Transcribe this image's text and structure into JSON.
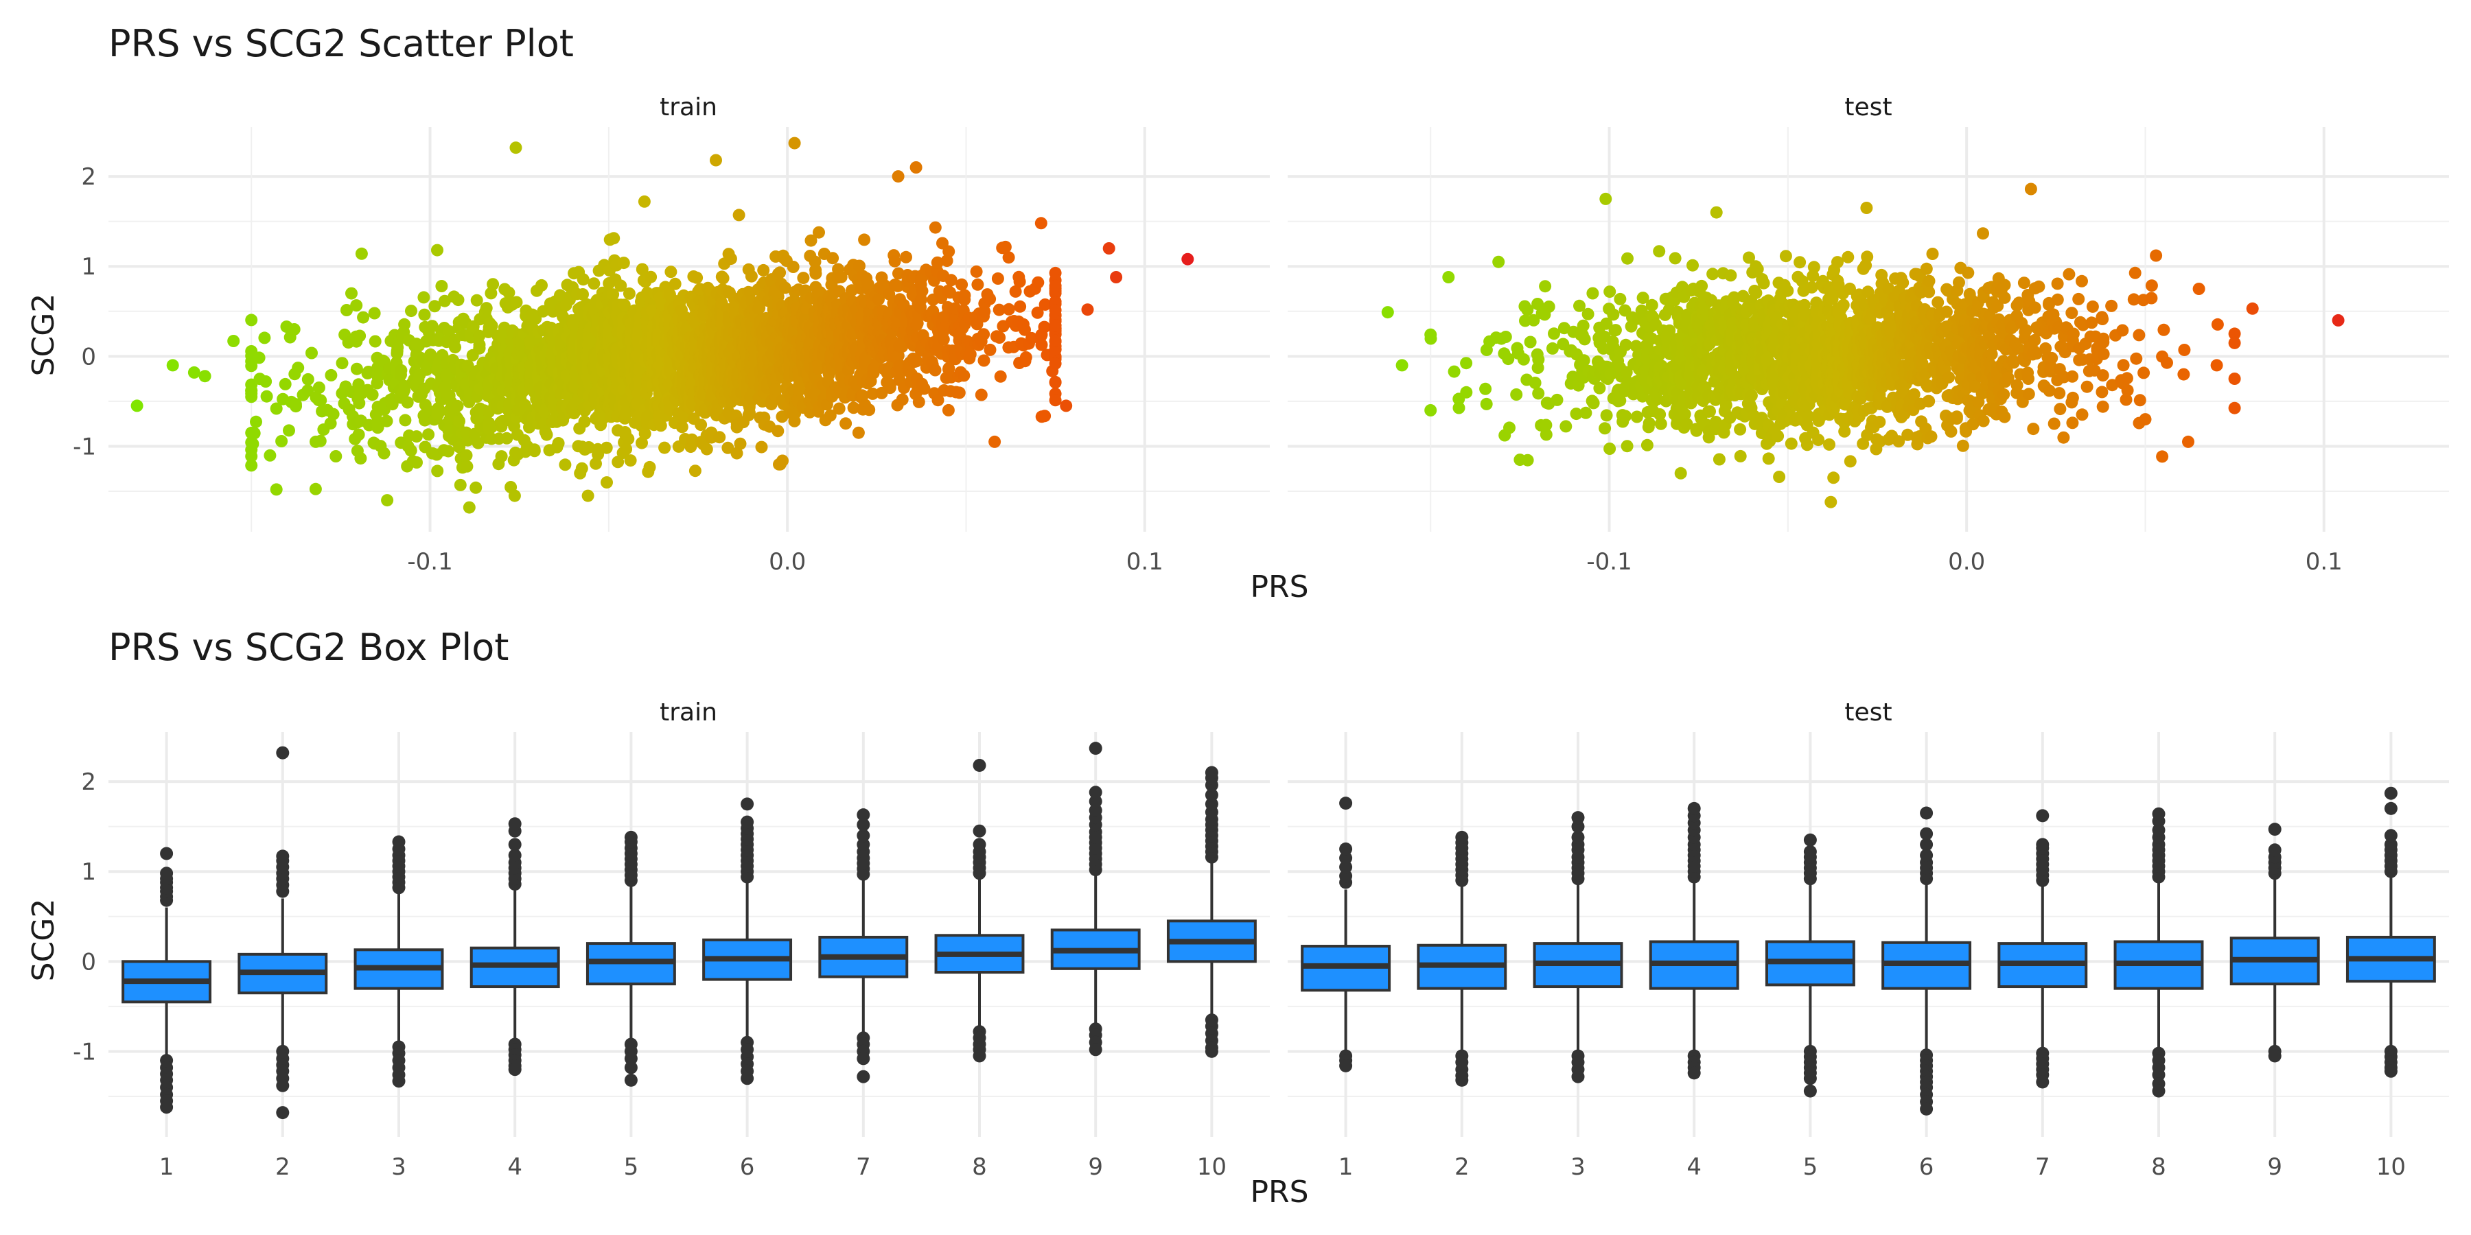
{
  "chart_data": [
    {
      "type": "scatter",
      "title": "PRS vs SCG2 Scatter Plot",
      "xlabel": "PRS",
      "ylabel": "SCG2",
      "xlim": [
        -0.19,
        0.135
      ],
      "ylim": [
        -1.95,
        2.55
      ],
      "x_ticks": [
        -0.1,
        0.0,
        0.1
      ],
      "x_tick_labels": [
        "-0.1",
        "0.0",
        "0.1"
      ],
      "y_ticks": [
        -1,
        0,
        1,
        2
      ],
      "y_tick_labels": [
        "-1",
        "0",
        "1",
        "2"
      ],
      "grid": true,
      "color_scale": {
        "low": "#7ee600",
        "mid": "#c9b400",
        "high": "#ec5c00",
        "extreme": "#e6191e"
      },
      "panels": [
        {
          "label": "train",
          "cloud": {
            "x_mean": -0.03,
            "x_sd": 0.045,
            "y_mean": 0.0,
            "y_sd": 0.42,
            "slope": 4.0,
            "n": 3000
          },
          "points": [
            {
              "x": -0.182,
              "y": -0.55
            },
            {
              "x": -0.172,
              "y": -0.1
            },
            {
              "x": -0.166,
              "y": -0.18
            },
            {
              "x": -0.163,
              "y": -0.22
            },
            {
              "x": -0.155,
              "y": 0.17
            },
            {
              "x": -0.15,
              "y": -0.45
            },
            {
              "x": -0.146,
              "y": -0.28
            },
            {
              "x": -0.143,
              "y": -1.48
            },
            {
              "x": -0.138,
              "y": 0.3
            },
            {
              "x": -0.132,
              "y": -0.95
            },
            {
              "x": -0.122,
              "y": 0.7
            },
            {
              "x": -0.112,
              "y": -1.6
            },
            {
              "x": -0.098,
              "y": 1.18
            },
            {
              "x": -0.089,
              "y": -1.68
            },
            {
              "x": -0.076,
              "y": 2.32
            },
            {
              "x": -0.058,
              "y": -1.3
            },
            {
              "x": -0.04,
              "y": 1.72
            },
            {
              "x": -0.02,
              "y": 2.18
            },
            {
              "x": -0.002,
              "y": -1.2
            },
            {
              "x": 0.002,
              "y": 2.37
            },
            {
              "x": 0.031,
              "y": 2.0
            },
            {
              "x": 0.036,
              "y": 2.1
            },
            {
              "x": 0.058,
              "y": -0.95
            },
            {
              "x": 0.071,
              "y": 1.48
            },
            {
              "x": 0.078,
              "y": -0.55
            },
            {
              "x": 0.084,
              "y": 0.52
            },
            {
              "x": 0.09,
              "y": 1.2
            },
            {
              "x": 0.092,
              "y": 0.88
            },
            {
              "x": 0.112,
              "y": 1.08
            }
          ]
        },
        {
          "label": "test",
          "cloud": {
            "x_mean": -0.04,
            "x_sd": 0.037,
            "y_mean": 0.0,
            "y_sd": 0.4,
            "slope": 1.0,
            "n": 2000
          },
          "points": [
            {
              "x": -0.162,
              "y": 0.49
            },
            {
              "x": -0.158,
              "y": -0.1
            },
            {
              "x": -0.15,
              "y": -0.6
            },
            {
              "x": -0.145,
              "y": 0.88
            },
            {
              "x": -0.14,
              "y": -0.4
            },
            {
              "x": -0.131,
              "y": 1.05
            },
            {
              "x": -0.125,
              "y": -1.15
            },
            {
              "x": -0.101,
              "y": 1.75
            },
            {
              "x": -0.08,
              "y": -1.3
            },
            {
              "x": -0.07,
              "y": 1.6
            },
            {
              "x": -0.038,
              "y": -1.62
            },
            {
              "x": -0.028,
              "y": 1.65
            },
            {
              "x": 0.018,
              "y": 1.86
            },
            {
              "x": 0.05,
              "y": -0.7
            },
            {
              "x": 0.053,
              "y": 1.12
            },
            {
              "x": 0.062,
              "y": -0.95
            },
            {
              "x": 0.065,
              "y": 0.75
            },
            {
              "x": 0.07,
              "y": -0.1
            },
            {
              "x": 0.08,
              "y": 0.53
            },
            {
              "x": 0.104,
              "y": 0.4
            }
          ]
        }
      ]
    },
    {
      "type": "box",
      "title": "PRS vs SCG2 Box Plot",
      "xlabel": "PRS",
      "ylabel": "SCG2",
      "categories": [
        "1",
        "2",
        "3",
        "4",
        "5",
        "6",
        "7",
        "8",
        "9",
        "10"
      ],
      "ylim": [
        -1.95,
        2.55
      ],
      "y_ticks": [
        -1,
        0,
        1,
        2
      ],
      "y_tick_labels": [
        "-1",
        "0",
        "1",
        "2"
      ],
      "grid": true,
      "box_color": "#1e90ff",
      "panels": [
        {
          "label": "train",
          "boxes": [
            {
              "low": -1.05,
              "q1": -0.45,
              "median": -0.22,
              "q3": 0.0,
              "high": 0.6,
              "outliers": [
                0.68,
                0.72,
                0.78,
                0.82,
                0.88,
                0.92,
                0.98,
                1.2,
                -1.1,
                -1.18,
                -1.25,
                -1.32,
                -1.4,
                -1.48,
                -1.55,
                -1.62
              ]
            },
            {
              "low": -0.95,
              "q1": -0.35,
              "median": -0.12,
              "q3": 0.08,
              "high": 0.7,
              "outliers": [
                0.78,
                0.85,
                0.92,
                0.98,
                1.05,
                1.12,
                1.17,
                2.32,
                -1.0,
                -1.08,
                -1.15,
                -1.22,
                -1.3,
                -1.38,
                -1.68
              ]
            },
            {
              "low": -0.88,
              "q1": -0.3,
              "median": -0.07,
              "q3": 0.13,
              "high": 0.76,
              "outliers": [
                0.82,
                0.88,
                0.94,
                1.0,
                1.06,
                1.12,
                1.18,
                1.25,
                1.33,
                -0.95,
                -1.02,
                -1.1,
                -1.18,
                -1.26,
                -1.33
              ]
            },
            {
              "low": -0.88,
              "q1": -0.28,
              "median": -0.04,
              "q3": 0.15,
              "high": 0.79,
              "outliers": [
                0.86,
                0.92,
                0.98,
                1.04,
                1.1,
                1.18,
                1.3,
                1.45,
                1.53,
                -0.92,
                -0.98,
                -1.04,
                -1.1,
                -1.16,
                -1.2
              ]
            },
            {
              "low": -0.88,
              "q1": -0.25,
              "median": 0.0,
              "q3": 0.2,
              "high": 0.84,
              "outliers": [
                0.9,
                0.96,
                1.02,
                1.08,
                1.14,
                1.2,
                1.26,
                1.33,
                1.38,
                -0.92,
                -1.0,
                -1.08,
                -1.18,
                -1.32
              ]
            },
            {
              "low": -0.85,
              "q1": -0.2,
              "median": 0.03,
              "q3": 0.24,
              "high": 0.88,
              "outliers": [
                0.94,
                1.0,
                1.06,
                1.12,
                1.18,
                1.24,
                1.3,
                1.36,
                1.42,
                1.48,
                1.55,
                1.75,
                -0.9,
                -0.98,
                -1.06,
                -1.14,
                -1.22,
                -1.3
              ]
            },
            {
              "low": -0.8,
              "q1": -0.17,
              "median": 0.05,
              "q3": 0.27,
              "high": 0.91,
              "outliers": [
                0.97,
                1.03,
                1.09,
                1.15,
                1.22,
                1.3,
                1.4,
                1.52,
                1.63,
                -0.85,
                -0.92,
                -1.0,
                -1.08,
                -1.28
              ]
            },
            {
              "low": -0.72,
              "q1": -0.12,
              "median": 0.08,
              "q3": 0.29,
              "high": 0.92,
              "outliers": [
                0.98,
                1.04,
                1.1,
                1.16,
                1.22,
                1.3,
                1.45,
                2.18,
                -0.78,
                -0.85,
                -0.92,
                -0.98,
                -1.05
              ]
            },
            {
              "low": -0.7,
              "q1": -0.08,
              "median": 0.12,
              "q3": 0.35,
              "high": 0.96,
              "outliers": [
                1.02,
                1.08,
                1.14,
                1.2,
                1.26,
                1.32,
                1.38,
                1.44,
                1.52,
                1.6,
                1.68,
                1.78,
                1.88,
                2.37,
                -0.75,
                -0.82,
                -0.9,
                -0.98
              ]
            },
            {
              "low": -0.6,
              "q1": 0.0,
              "median": 0.22,
              "q3": 0.45,
              "high": 1.1,
              "outliers": [
                1.16,
                1.22,
                1.28,
                1.34,
                1.4,
                1.46,
                1.52,
                1.58,
                1.66,
                1.75,
                1.85,
                1.96,
                2.04,
                2.1,
                -0.65,
                -0.72,
                -0.8,
                -0.88,
                -0.96,
                -1.0
              ]
            }
          ]
        },
        {
          "label": "test",
          "boxes": [
            {
              "low": -1.0,
              "q1": -0.32,
              "median": -0.05,
              "q3": 0.17,
              "high": 0.8,
              "outliers": [
                0.88,
                0.95,
                1.05,
                1.15,
                1.25,
                1.76,
                -1.05,
                -1.1,
                -1.16
              ]
            },
            {
              "low": -0.98,
              "q1": -0.3,
              "median": -0.04,
              "q3": 0.18,
              "high": 0.83,
              "outliers": [
                0.9,
                0.96,
                1.02,
                1.08,
                1.14,
                1.2,
                1.26,
                1.32,
                1.38,
                -1.05,
                -1.12,
                -1.2,
                -1.27,
                -1.32
              ]
            },
            {
              "low": -1.0,
              "q1": -0.28,
              "median": -0.02,
              "q3": 0.2,
              "high": 0.86,
              "outliers": [
                0.92,
                0.98,
                1.04,
                1.1,
                1.16,
                1.24,
                1.3,
                1.38,
                1.5,
                1.6,
                -1.05,
                -1.12,
                -1.2,
                -1.28
              ]
            },
            {
              "low": -0.98,
              "q1": -0.3,
              "median": -0.02,
              "q3": 0.22,
              "high": 0.88,
              "outliers": [
                0.94,
                1.0,
                1.06,
                1.12,
                1.18,
                1.24,
                1.3,
                1.38,
                1.46,
                1.54,
                1.62,
                1.7,
                -1.05,
                -1.12,
                -1.18,
                -1.24
              ]
            },
            {
              "low": -0.96,
              "q1": -0.26,
              "median": 0.0,
              "q3": 0.22,
              "high": 0.86,
              "outliers": [
                0.92,
                0.98,
                1.04,
                1.1,
                1.16,
                1.22,
                1.35,
                -1.0,
                -1.06,
                -1.12,
                -1.18,
                -1.24,
                -1.3,
                -1.44
              ]
            },
            {
              "low": -0.98,
              "q1": -0.3,
              "median": -0.02,
              "q3": 0.21,
              "high": 0.86,
              "outliers": [
                0.92,
                0.98,
                1.04,
                1.1,
                1.18,
                1.3,
                1.42,
                1.65,
                -1.04,
                -1.1,
                -1.16,
                -1.22,
                -1.28,
                -1.34,
                -1.4,
                -1.48,
                -1.56,
                -1.64
              ]
            },
            {
              "low": -0.96,
              "q1": -0.28,
              "median": -0.02,
              "q3": 0.2,
              "high": 0.84,
              "outliers": [
                0.9,
                0.96,
                1.02,
                1.08,
                1.14,
                1.2,
                1.26,
                1.3,
                1.62,
                -1.02,
                -1.08,
                -1.14,
                -1.2,
                -1.26,
                -1.34
              ]
            },
            {
              "low": -0.98,
              "q1": -0.3,
              "median": -0.02,
              "q3": 0.22,
              "high": 0.88,
              "outliers": [
                0.94,
                1.0,
                1.06,
                1.12,
                1.18,
                1.24,
                1.3,
                1.38,
                1.46,
                1.56,
                1.64,
                -1.02,
                -1.1,
                -1.18,
                -1.26,
                -1.36,
                -1.44
              ]
            },
            {
              "low": -0.95,
              "q1": -0.25,
              "median": 0.02,
              "q3": 0.26,
              "high": 0.92,
              "outliers": [
                0.98,
                1.04,
                1.1,
                1.16,
                1.24,
                1.47,
                -1.0,
                -1.05
              ]
            },
            {
              "low": -0.96,
              "q1": -0.22,
              "median": 0.03,
              "q3": 0.27,
              "high": 0.94,
              "outliers": [
                1.0,
                1.06,
                1.12,
                1.18,
                1.24,
                1.3,
                1.4,
                1.7,
                1.87,
                -1.0,
                -1.06,
                -1.12,
                -1.18,
                -1.22
              ]
            }
          ]
        }
      ]
    }
  ]
}
